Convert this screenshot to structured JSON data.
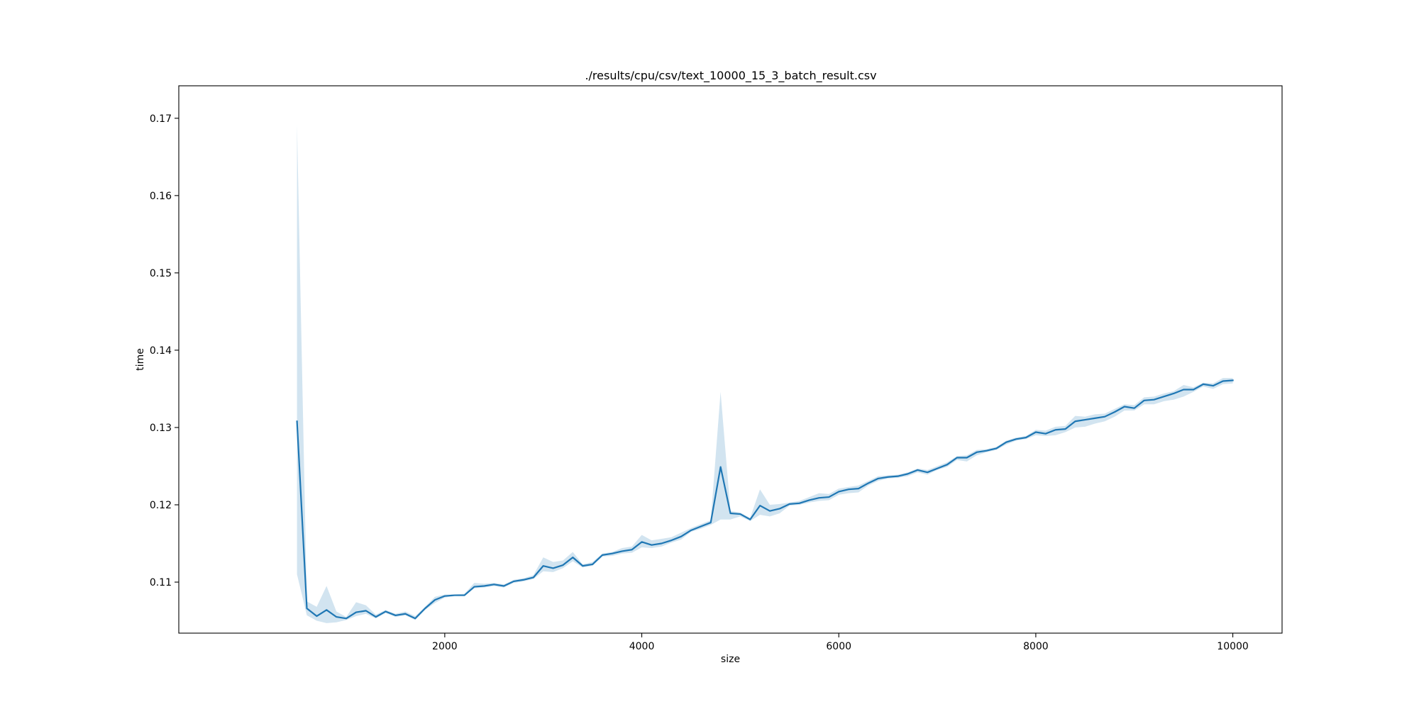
{
  "chart_data": {
    "type": "line",
    "title": "./results/cpu/csv/text_10000_15_3_batch_result.csv",
    "xlabel": "size",
    "ylabel": "time",
    "xlim": [
      -700,
      10500
    ],
    "ylim": [
      0.1034,
      0.1742
    ],
    "xticks": [
      2000,
      4000,
      6000,
      8000,
      10000
    ],
    "xtick_labels": [
      "2000",
      "4000",
      "6000",
      "8000",
      "10000"
    ],
    "yticks": [
      0.11,
      0.12,
      0.13,
      0.14,
      0.15,
      0.16,
      0.17
    ],
    "ytick_labels": [
      "0.11",
      "0.12",
      "0.13",
      "0.14",
      "0.15",
      "0.16",
      "0.17"
    ],
    "grid": false,
    "legend": "none",
    "colors": {
      "line": "#1f77b4",
      "band": "#1f77b4"
    },
    "series": [
      {
        "x": [
          500,
          600,
          700,
          800,
          900,
          1000,
          1100,
          1200,
          1300,
          1400,
          1500,
          1600,
          1700,
          1800,
          1900,
          2000,
          2100,
          2200,
          2300,
          2400,
          2500,
          2600,
          2700,
          2800,
          2900,
          3000,
          3100,
          3200,
          3300,
          3400,
          3500,
          3600,
          3700,
          3800,
          3900,
          4000,
          4100,
          4200,
          4300,
          4400,
          4500,
          4600,
          4700,
          4800,
          4900,
          5000,
          5100,
          5200,
          5300,
          5400,
          5500,
          5600,
          5700,
          5800,
          5900,
          6000,
          6100,
          6200,
          6300,
          6400,
          6500,
          6600,
          6700,
          6800,
          6900,
          7000,
          7100,
          7200,
          7300,
          7400,
          7500,
          7600,
          7700,
          7800,
          7900,
          8000,
          8100,
          8200,
          8300,
          8400,
          8500,
          8600,
          8700,
          8800,
          8900,
          9000,
          9100,
          9200,
          9300,
          9400,
          9500,
          9600,
          9700,
          9800,
          9900,
          10000
        ],
        "y": [
          0.1308,
          0.1066,
          0.1056,
          0.1064,
          0.1055,
          0.1053,
          0.1061,
          0.1063,
          0.1055,
          0.1062,
          0.1057,
          0.1059,
          0.1053,
          0.1066,
          0.1077,
          0.1082,
          0.1083,
          0.1083,
          0.1094,
          0.1095,
          0.1097,
          0.1095,
          0.1101,
          0.1103,
          0.1106,
          0.1121,
          0.1118,
          0.1122,
          0.1132,
          0.1121,
          0.1123,
          0.1135,
          0.1137,
          0.114,
          0.1142,
          0.1152,
          0.1148,
          0.115,
          0.1154,
          0.1159,
          0.1167,
          0.1172,
          0.1177,
          0.1249,
          0.1189,
          0.1188,
          0.1181,
          0.1199,
          0.1192,
          0.1195,
          0.1201,
          0.1202,
          0.1206,
          0.1209,
          0.121,
          0.1217,
          0.122,
          0.1221,
          0.1228,
          0.1234,
          0.1236,
          0.1237,
          0.124,
          0.1245,
          0.1242,
          0.1247,
          0.1252,
          0.1261,
          0.1261,
          0.1268,
          0.127,
          0.1273,
          0.1281,
          0.1285,
          0.1287,
          0.1294,
          0.1292,
          0.1297,
          0.1298,
          0.1308,
          0.131,
          0.1312,
          0.1314,
          0.132,
          0.1327,
          0.1325,
          0.1335,
          0.1336,
          0.134,
          0.1344,
          0.1349,
          0.1349,
          0.1356,
          0.1354,
          0.136,
          0.1361
        ],
        "y_lower": [
          0.111,
          0.1057,
          0.105,
          0.1047,
          0.1048,
          0.1051,
          0.1056,
          0.1059,
          0.1053,
          0.106,
          0.1055,
          0.1057,
          0.1051,
          0.1064,
          0.1073,
          0.108,
          0.1082,
          0.1082,
          0.1092,
          0.1093,
          0.1095,
          0.1093,
          0.1099,
          0.1101,
          0.1104,
          0.1114,
          0.1113,
          0.1118,
          0.1127,
          0.1119,
          0.1121,
          0.1133,
          0.1134,
          0.1137,
          0.1138,
          0.1145,
          0.1144,
          0.1146,
          0.1151,
          0.1155,
          0.1165,
          0.1169,
          0.1174,
          0.1181,
          0.1181,
          0.1185,
          0.1179,
          0.1187,
          0.1185,
          0.1189,
          0.1199,
          0.12,
          0.1203,
          0.1205,
          0.1206,
          0.1213,
          0.1215,
          0.1216,
          0.1225,
          0.1231,
          0.1234,
          0.1235,
          0.1237,
          0.1242,
          0.1239,
          0.1245,
          0.1249,
          0.1258,
          0.1256,
          0.1264,
          0.1268,
          0.1271,
          0.1278,
          0.1283,
          0.1285,
          0.129,
          0.1289,
          0.129,
          0.1294,
          0.13,
          0.1301,
          0.1305,
          0.1308,
          0.1314,
          0.1322,
          0.1322,
          0.133,
          0.133,
          0.1334,
          0.1336,
          0.134,
          0.1346,
          0.1353,
          0.135,
          0.1356,
          0.1357
        ],
        "y_upper": [
          0.1692,
          0.1075,
          0.1068,
          0.1095,
          0.1062,
          0.1055,
          0.1074,
          0.107,
          0.1058,
          0.1064,
          0.1059,
          0.1062,
          0.1056,
          0.1068,
          0.1081,
          0.1084,
          0.1084,
          0.1085,
          0.1099,
          0.1098,
          0.1099,
          0.1097,
          0.1103,
          0.1105,
          0.1109,
          0.1132,
          0.1126,
          0.1128,
          0.1139,
          0.1123,
          0.1126,
          0.1137,
          0.1139,
          0.1144,
          0.1146,
          0.1161,
          0.1154,
          0.1156,
          0.1158,
          0.1164,
          0.117,
          0.1175,
          0.118,
          0.1346,
          0.1192,
          0.119,
          0.1183,
          0.122,
          0.12,
          0.1201,
          0.1203,
          0.1205,
          0.121,
          0.1215,
          0.1214,
          0.1221,
          0.1223,
          0.1225,
          0.1231,
          0.1237,
          0.1238,
          0.1239,
          0.1242,
          0.1247,
          0.1245,
          0.125,
          0.1255,
          0.1263,
          0.1264,
          0.1271,
          0.1272,
          0.1275,
          0.1283,
          0.1287,
          0.1289,
          0.1297,
          0.1296,
          0.1301,
          0.1302,
          0.1315,
          0.1314,
          0.1317,
          0.1318,
          0.1324,
          0.133,
          0.1329,
          0.1339,
          0.134,
          0.1344,
          0.1347,
          0.1355,
          0.1352,
          0.1358,
          0.1357,
          0.1364,
          0.1364
        ]
      }
    ]
  }
}
